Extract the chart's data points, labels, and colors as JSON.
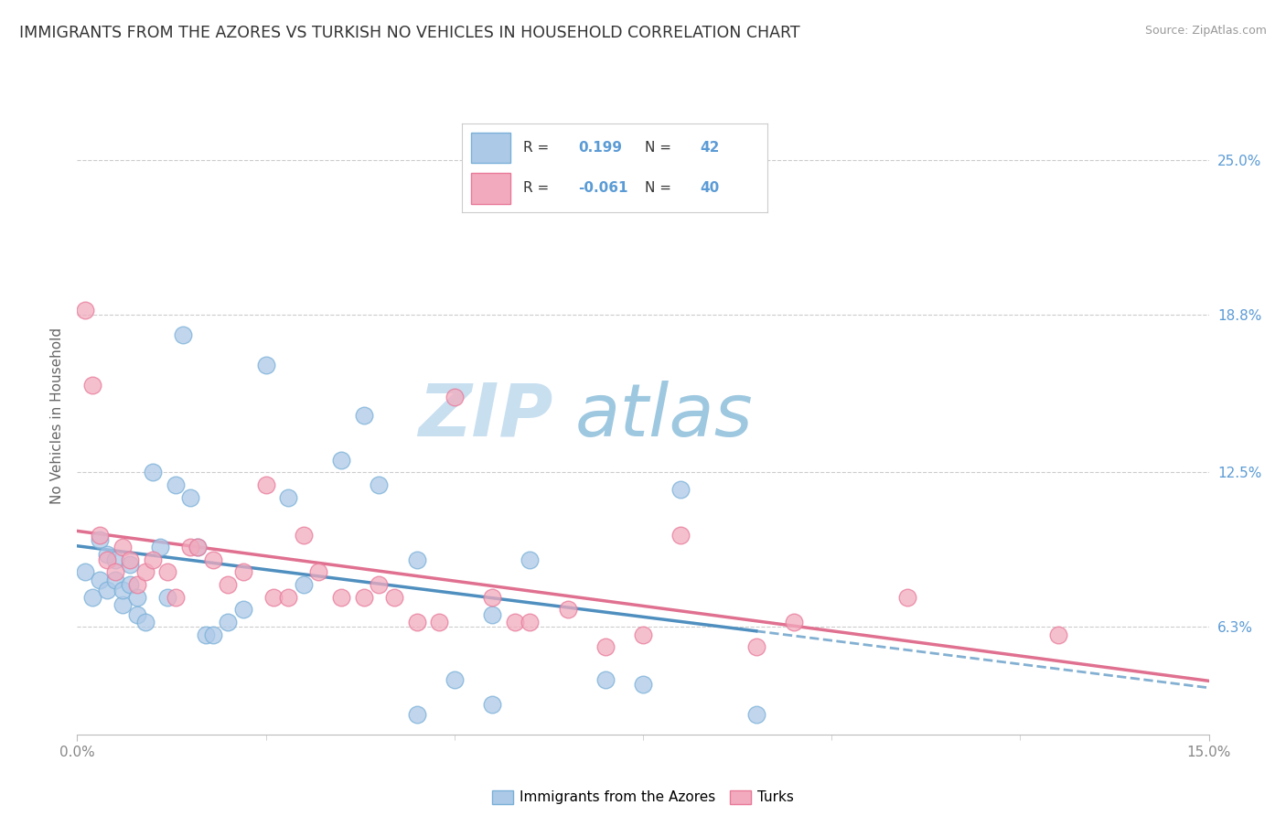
{
  "title": "IMMIGRANTS FROM THE AZORES VS TURKISH NO VEHICLES IN HOUSEHOLD CORRELATION CHART",
  "source": "Source: ZipAtlas.com",
  "ylabel": "No Vehicles in Household",
  "ytick_labels": [
    "6.3%",
    "12.5%",
    "18.8%",
    "25.0%"
  ],
  "ytick_values": [
    0.063,
    0.125,
    0.188,
    0.25
  ],
  "xmin": 0.0,
  "xmax": 0.15,
  "ymin": 0.02,
  "ymax": 0.275,
  "r_azores": "0.199",
  "n_azores": "42",
  "r_turks": "-0.061",
  "n_turks": "40",
  "legend_label_azores": "Immigrants from the Azores",
  "legend_label_turks": "Turks",
  "color_azores_fill": "#adc9e8",
  "color_turks_fill": "#f2abbe",
  "color_azores_edge": "#7ab0d8",
  "color_turks_edge": "#e87a9a",
  "color_azores_line": "#4f8fbf",
  "color_turks_line": "#e07090",
  "color_rn_text": "#5b9bd5",
  "color_label_text": "#333333",
  "color_ytick": "#5b9bd5",
  "color_source": "#999999",
  "color_title": "#333333",
  "color_ylabel": "#666666",
  "color_grid": "#cccccc",
  "color_bottom_spine": "#aaaaaa",
  "watermark_zip_color": "#c8dff0",
  "watermark_atlas_color": "#9ec8e0",
  "azores_x": [
    0.001,
    0.002,
    0.003,
    0.003,
    0.004,
    0.004,
    0.005,
    0.005,
    0.006,
    0.006,
    0.007,
    0.007,
    0.008,
    0.008,
    0.009,
    0.01,
    0.011,
    0.012,
    0.013,
    0.014,
    0.015,
    0.016,
    0.017,
    0.018,
    0.02,
    0.022,
    0.025,
    0.028,
    0.03,
    0.035,
    0.038,
    0.04,
    0.045,
    0.05,
    0.055,
    0.06,
    0.07,
    0.075,
    0.08,
    0.09,
    0.055,
    0.045
  ],
  "azores_y": [
    0.085,
    0.075,
    0.082,
    0.098,
    0.092,
    0.078,
    0.082,
    0.09,
    0.072,
    0.078,
    0.08,
    0.088,
    0.068,
    0.075,
    0.065,
    0.125,
    0.095,
    0.075,
    0.12,
    0.18,
    0.115,
    0.095,
    0.06,
    0.06,
    0.065,
    0.07,
    0.168,
    0.115,
    0.08,
    0.13,
    0.148,
    0.12,
    0.09,
    0.042,
    0.068,
    0.09,
    0.042,
    0.04,
    0.118,
    0.028,
    0.032,
    0.028
  ],
  "turks_x": [
    0.001,
    0.002,
    0.003,
    0.004,
    0.005,
    0.006,
    0.007,
    0.008,
    0.009,
    0.01,
    0.012,
    0.013,
    0.015,
    0.016,
    0.018,
    0.02,
    0.022,
    0.025,
    0.026,
    0.028,
    0.03,
    0.032,
    0.035,
    0.038,
    0.04,
    0.042,
    0.045,
    0.048,
    0.05,
    0.055,
    0.058,
    0.06,
    0.065,
    0.07,
    0.075,
    0.08,
    0.09,
    0.095,
    0.11,
    0.13
  ],
  "turks_y": [
    0.19,
    0.16,
    0.1,
    0.09,
    0.085,
    0.095,
    0.09,
    0.08,
    0.085,
    0.09,
    0.085,
    0.075,
    0.095,
    0.095,
    0.09,
    0.08,
    0.085,
    0.12,
    0.075,
    0.075,
    0.1,
    0.085,
    0.075,
    0.075,
    0.08,
    0.075,
    0.065,
    0.065,
    0.155,
    0.075,
    0.065,
    0.065,
    0.07,
    0.055,
    0.06,
    0.1,
    0.055,
    0.065,
    0.075,
    0.06
  ]
}
